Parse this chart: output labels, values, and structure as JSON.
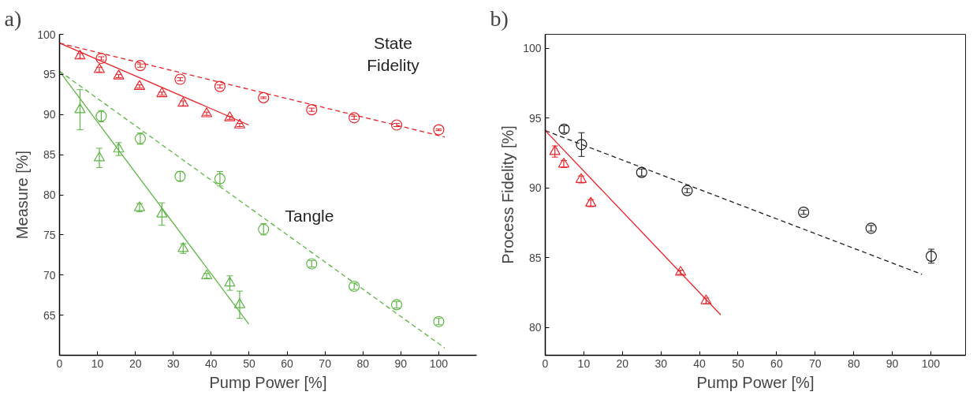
{
  "chart_data": [
    {
      "type": "scatter",
      "title": "a)",
      "xlabel": "Pump Power [%]",
      "ylabel": "Measure [%]",
      "xlim": [
        0,
        110
      ],
      "ylim": [
        60,
        100
      ],
      "xticks": [
        0,
        10,
        20,
        30,
        40,
        50,
        60,
        70,
        80,
        90,
        100
      ],
      "yticks": [
        65,
        70,
        75,
        80,
        85,
        90,
        95,
        100
      ],
      "grid": false,
      "annotations": [
        "State\nFidelity",
        "Tangle"
      ],
      "series": [
        {
          "marker": "triangle",
          "color": "#e8242b",
          "x": [
            5.4,
            10.5,
            15.6,
            21.1,
            27.0,
            32.6,
            38.8,
            44.9,
            47.5
          ],
          "values": [
            97.3,
            95.6,
            94.8,
            93.5,
            92.6,
            91.4,
            90.1,
            89.6,
            88.7
          ],
          "errors": [
            0.3,
            0.3,
            0.2,
            0.2,
            0.2,
            0.3,
            0.2,
            0.2,
            0.2
          ]
        },
        {
          "marker": "circle",
          "color": "#e8242b",
          "x": [
            11.0,
            21.3,
            31.8,
            42.3,
            53.8,
            66.5,
            77.7,
            88.9,
            100
          ],
          "values": [
            97.0,
            96.1,
            94.4,
            93.5,
            92.1,
            90.6,
            89.6,
            88.7,
            88.1
          ],
          "errors": [
            0.2,
            0.2,
            0.2,
            0.2,
            0.1,
            0.2,
            0.2,
            0.2,
            0.1
          ]
        },
        {
          "marker": "triangle",
          "color": "#5db544",
          "x": [
            5.4,
            10.5,
            15.6,
            21.1,
            27.0,
            32.6,
            38.8,
            44.9,
            47.5
          ],
          "values": [
            90.6,
            84.6,
            85.7,
            78.4,
            77.6,
            73.3,
            69.9,
            69.0,
            66.3
          ],
          "errors": [
            2.5,
            1.2,
            0.8,
            0.5,
            1.4,
            0.6,
            0.3,
            0.9,
            1.7
          ]
        },
        {
          "marker": "circle",
          "color": "#5db544",
          "x": [
            11.0,
            21.3,
            31.8,
            42.3,
            53.8,
            66.5,
            77.7,
            88.9,
            100
          ],
          "values": [
            89.8,
            87.0,
            82.3,
            82.0,
            75.7,
            71.4,
            68.6,
            66.3,
            64.2
          ],
          "errors": [
            0.7,
            0.7,
            0.6,
            0.9,
            0.7,
            0.4,
            0.4,
            0.4,
            0.4
          ]
        },
        {
          "type": "line",
          "line_style": "solid",
          "color": "#e8242b",
          "x": [
            0,
            49.9
          ],
          "values": [
            98.9,
            88.7
          ]
        },
        {
          "type": "line",
          "line_style": "dashed",
          "color": "#e8242b",
          "x": [
            0,
            101.6
          ],
          "values": [
            98.9,
            87.2
          ]
        },
        {
          "type": "line",
          "line_style": "solid",
          "color": "#5db544",
          "x": [
            0,
            49.9
          ],
          "values": [
            95.4,
            63.9
          ]
        },
        {
          "type": "line",
          "line_style": "dashed",
          "color": "#5db544",
          "x": [
            0,
            101.6
          ],
          "values": [
            95.4,
            60.9
          ]
        }
      ]
    },
    {
      "type": "scatter",
      "title": "b)",
      "xlabel": "Pump Power [%]",
      "ylabel": "Process Fidelity [%]",
      "xlim": [
        0,
        109
      ],
      "ylim": [
        78,
        101
      ],
      "xticks": [
        0,
        10,
        20,
        30,
        40,
        50,
        60,
        70,
        80,
        90,
        100
      ],
      "yticks": [
        80,
        85,
        90,
        95,
        100
      ],
      "grid": false,
      "series": [
        {
          "marker": "circle",
          "color": "#231f20",
          "x": [
            4.9,
            9.4,
            25.0,
            36.8,
            67.0,
            84.5,
            100.1
          ],
          "values": [
            94.2,
            93.1,
            91.1,
            89.8,
            88.25,
            87.1,
            85.1
          ],
          "errors": [
            0.25,
            0.85,
            0.25,
            0.15,
            0.15,
            0.2,
            0.5
          ]
        },
        {
          "marker": "triangle",
          "color": "#e8242b",
          "x": [
            2.5,
            4.8,
            9.3,
            11.8,
            35.1,
            41.7
          ],
          "values": [
            92.6,
            91.7,
            90.6,
            88.9,
            83.95,
            81.9
          ],
          "errors": [
            0.4,
            0.25,
            0.25,
            0.25,
            0.15,
            0.2
          ]
        },
        {
          "type": "line",
          "line_style": "dashed",
          "color": "#231f20",
          "x": [
            0,
            97.7
          ],
          "values": [
            94.1,
            83.8
          ]
        },
        {
          "type": "line",
          "line_style": "solid",
          "color": "#e8242b",
          "x": [
            0,
            45.5
          ],
          "values": [
            94.1,
            80.9
          ]
        }
      ]
    }
  ]
}
